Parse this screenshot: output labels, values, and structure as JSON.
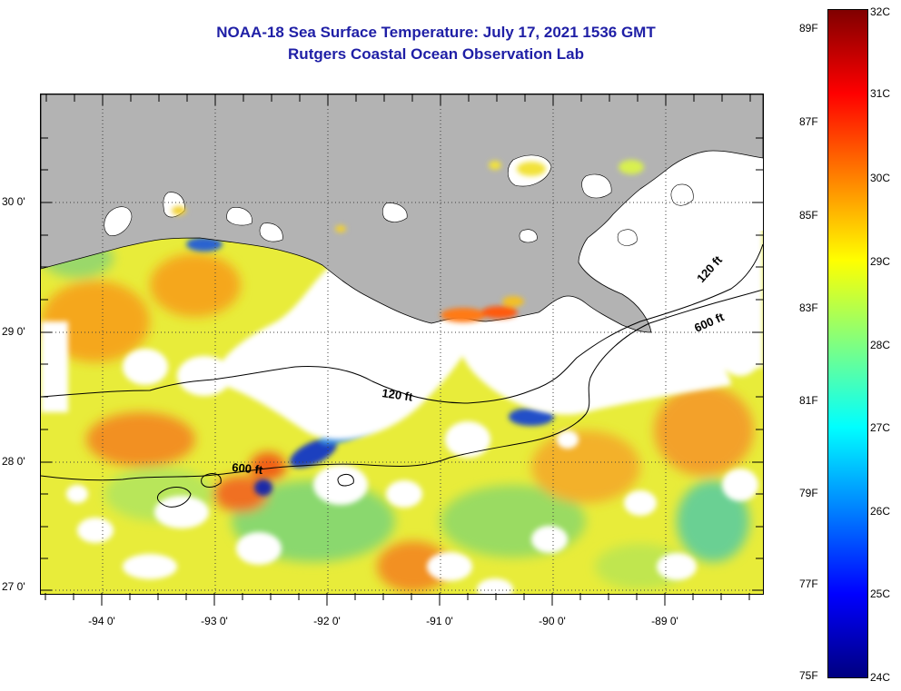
{
  "header": {
    "title_line_1": "NOAA-18 Sea Surface Temperature:  July 17, 2021 1536 GMT",
    "title_line_2": "Rutgers Coastal Ocean Observation Lab"
  },
  "map": {
    "lat_labels": [
      "30 0'",
      "29 0'",
      "28 0'",
      "27 0'"
    ],
    "lon_labels": [
      "-94 0'",
      "-93 0'",
      "-92 0'",
      "-91 0'",
      "-90 0'",
      "-89 0'"
    ],
    "contour_labels": {
      "upper_120": "120 ft",
      "upper_600": "600 ft",
      "lower_120": "120 ft",
      "lower_600": "600 ft"
    },
    "colors": {
      "land": "#b3b3b3",
      "cloud": "#ffffff",
      "grid": "#404040"
    }
  },
  "colorbar": {
    "fahrenheit_labels": [
      "89F",
      "87F",
      "85F",
      "83F",
      "81F",
      "79F",
      "77F",
      "75F"
    ],
    "celsius_labels": [
      "32C",
      "31C",
      "30C",
      "29C",
      "28C",
      "27C",
      "26C",
      "25C",
      "24C"
    ],
    "gradient_top_to_bottom": [
      "#800000",
      "#ff0000",
      "#ff8000",
      "#ffff00",
      "#80ff80",
      "#00ffff",
      "#0080ff",
      "#0000ff",
      "#000080"
    ]
  }
}
